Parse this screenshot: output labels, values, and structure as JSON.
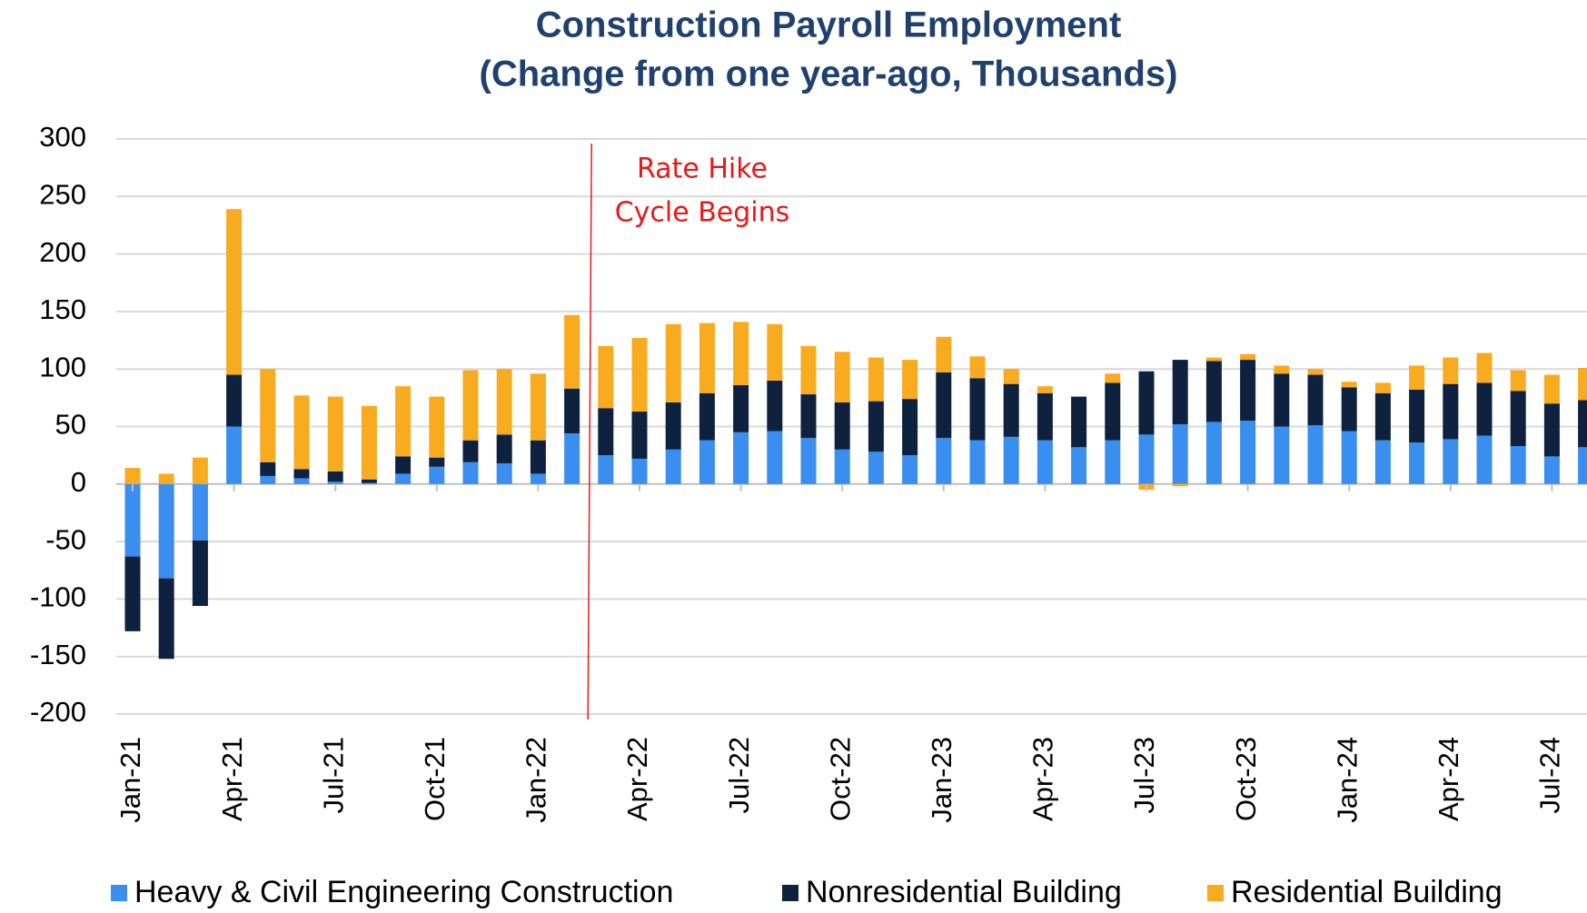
{
  "chart_data": {
    "type": "bar",
    "stacked": true,
    "title": [
      "Construction Payroll Employment",
      "(Change from one year-ago, Thousands)"
    ],
    "annotation": [
      "Rate Hike",
      "Cycle Begins"
    ],
    "categories": [
      "Jan-21",
      null,
      null,
      "Apr-21",
      null,
      null,
      "Jul-21",
      null,
      null,
      "Oct-21",
      null,
      null,
      "Jan-22",
      null,
      null,
      "Apr-22",
      null,
      null,
      "Jul-22",
      null,
      null,
      "Oct-22",
      null,
      null,
      "Jan-23",
      null,
      null,
      "Apr-23",
      null,
      null,
      "Jul-23",
      null,
      null,
      "Oct-23",
      null,
      null,
      "Jan-24",
      null,
      null,
      "Apr-24",
      null,
      null,
      "Jul-24",
      null
    ],
    "series": [
      {
        "name": "Heavy & Civil Engineering Construction",
        "color": "#3a8eef",
        "values": [
          -63,
          -82,
          -49,
          50,
          7,
          5,
          2,
          1,
          9,
          15,
          19,
          18,
          9,
          44,
          25,
          22,
          30,
          38,
          45,
          46,
          40,
          30,
          28,
          25,
          40,
          38,
          41,
          38,
          32,
          38,
          43,
          52,
          54,
          55,
          50,
          51,
          46,
          38,
          36,
          39,
          42,
          33,
          24,
          32
        ]
      },
      {
        "name": "Nonresidential Building",
        "color": "#0e2240",
        "values": [
          -65,
          -70,
          -57,
          45,
          12,
          8,
          9,
          3,
          15,
          8,
          19,
          25,
          29,
          39,
          41,
          41,
          41,
          41,
          41,
          44,
          38,
          41,
          44,
          49,
          57,
          54,
          46,
          41,
          44,
          50,
          55,
          56,
          53,
          53,
          46,
          44,
          38,
          41,
          46,
          48,
          46,
          48,
          46,
          41
        ]
      },
      {
        "name": "Residential Building",
        "color": "#f9ab1f",
        "values": [
          14,
          9,
          23,
          144,
          81,
          64,
          65,
          64,
          61,
          53,
          61,
          57,
          58,
          64,
          54,
          64,
          68,
          61,
          55,
          49,
          42,
          44,
          38,
          34,
          31,
          19,
          13,
          6,
          0,
          8,
          -5,
          -2,
          3,
          5,
          7,
          5,
          5,
          9,
          21,
          23,
          26,
          18,
          25,
          28
        ]
      }
    ],
    "ylim": [
      -200,
      300
    ],
    "yticks": [
      -200,
      -150,
      -100,
      -50,
      0,
      50,
      100,
      150,
      200,
      250,
      300
    ],
    "grid": true
  }
}
